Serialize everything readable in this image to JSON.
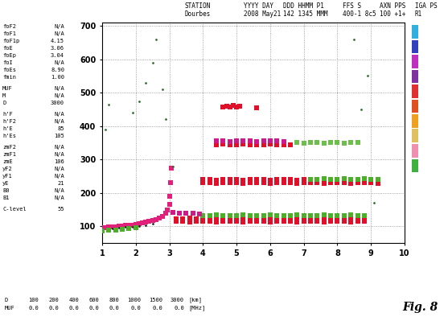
{
  "header": {
    "columns": [
      {
        "label": "STATION",
        "value": "Dourbes"
      },
      {
        "label": "YYYY DAY",
        "value": "2008 May21"
      },
      {
        "label": "DDD HHMM P1",
        "value": "142 1345 MMM"
      },
      {
        "label": "FFS S",
        "value": "400-1 8c5"
      },
      {
        "label": "AXN PPS",
        "value": "100 +1+"
      },
      {
        "label": "IGA PS",
        "value": "R1"
      }
    ]
  },
  "parameters": [
    [
      [
        "foF2",
        "N/A"
      ],
      [
        "foF1",
        "N/A"
      ],
      [
        "foF1p",
        "4.15"
      ],
      [
        "foE",
        "3.06"
      ],
      [
        "foEp",
        "3.04"
      ],
      [
        "foI",
        "N/A"
      ],
      [
        "foEs",
        "8.90"
      ],
      [
        "fmin",
        "1.00"
      ]
    ],
    [
      [
        "MUF",
        "N/A"
      ],
      [
        "M",
        "N/A"
      ],
      [
        "D",
        "3000"
      ]
    ],
    [
      [
        "h'F",
        "N/A"
      ],
      [
        "h'F2",
        "N/A"
      ],
      [
        "h'E",
        "85"
      ],
      [
        "h'Es",
        "105"
      ]
    ],
    [
      [
        "zmF2",
        "N/A"
      ],
      [
        "zmF1",
        "N/A"
      ],
      [
        "zmE",
        "106"
      ],
      [
        "yF2",
        "N/A"
      ],
      [
        "yF1",
        "N/A"
      ],
      [
        "yE",
        "21"
      ],
      [
        "B0",
        "N/A"
      ],
      [
        "B1",
        "N/A"
      ]
    ],
    [
      [
        "C-level",
        "55"
      ]
    ]
  ],
  "chart_data": {
    "type": "scatter",
    "xlim": [
      1,
      10
    ],
    "ylim": [
      50,
      710
    ],
    "xticks": [
      1,
      2,
      3,
      4,
      5,
      6,
      7,
      8,
      9,
      10
    ],
    "yticks": [
      100,
      200,
      300,
      400,
      500,
      600,
      700
    ],
    "grid": true,
    "series": [
      {
        "color": "#e0207a",
        "marker": "square",
        "x": [
          1.0,
          1.1,
          1.2,
          1.3,
          1.4,
          1.5,
          1.6,
          1.7,
          1.8,
          1.9,
          2.0,
          2.1,
          2.2,
          2.3,
          2.4,
          2.5,
          2.6,
          2.7,
          2.8,
          2.9,
          2.95,
          3.0,
          3.02,
          3.04,
          3.06
        ],
        "y": [
          95,
          96,
          97,
          98,
          99,
          100,
          101,
          102,
          103,
          104,
          106,
          108,
          110,
          112,
          114,
          117,
          120,
          124,
          129,
          138,
          148,
          165,
          190,
          230,
          275
        ]
      },
      {
        "color": "#202020",
        "marker": "dot",
        "x": [
          1.3,
          1.5,
          1.7,
          1.9,
          2.1,
          2.3,
          2.5
        ],
        "y": [
          93,
          95,
          97,
          99,
          101,
          104,
          108
        ]
      },
      {
        "color": "#4caf2a",
        "marker": "square",
        "x": [
          1.0,
          1.2,
          1.4,
          1.6,
          1.8,
          2.0
        ],
        "y": [
          86,
          88,
          89,
          91,
          93,
          95
        ]
      },
      {
        "color": "#e0102a",
        "marker": "square",
        "x": [
          3.2,
          3.4,
          3.6,
          3.8,
          4.0,
          4.2,
          4.4,
          4.6,
          4.8,
          5.0,
          5.2,
          5.4,
          5.6,
          5.8,
          6.0,
          6.2,
          6.4,
          6.6,
          6.8,
          7.0,
          7.2,
          7.4,
          7.6,
          7.8,
          8.0,
          8.2,
          8.4,
          8.6,
          8.8
        ],
        "y": [
          114,
          115,
          113,
          114,
          115,
          114,
          113,
          114,
          115,
          114,
          113,
          114,
          115,
          114,
          113,
          114,
          115,
          114,
          113,
          114,
          115,
          114,
          113,
          114,
          115,
          114,
          113,
          114,
          115
        ]
      },
      {
        "color": "#e0102a",
        "marker": "square",
        "x": [
          3.2,
          3.4,
          3.6,
          3.8,
          4.0,
          4.2,
          4.4,
          4.6,
          4.8,
          5.0,
          5.2,
          5.4,
          5.6,
          5.8,
          6.0,
          6.2,
          6.4,
          6.6,
          6.8,
          7.0,
          7.2,
          7.4,
          7.6,
          7.8,
          8.0,
          8.2,
          8.4,
          8.6,
          8.8
        ],
        "y": [
          122,
          123,
          124,
          123,
          122,
          123,
          124,
          123,
          122,
          123,
          124,
          123,
          122,
          123,
          124,
          123,
          122,
          123,
          124,
          123,
          122,
          123,
          124,
          123,
          122,
          123,
          124,
          123,
          122
        ]
      },
      {
        "color": "#4caf2a",
        "marker": "square",
        "x": [
          4.0,
          4.2,
          4.4,
          4.6,
          4.8,
          5.0,
          5.2,
          5.4,
          5.6,
          5.8,
          6.0,
          6.2,
          6.4,
          6.6,
          6.8,
          7.0,
          7.2,
          7.4,
          7.6,
          7.8,
          8.0,
          8.2,
          8.4,
          8.6,
          8.8
        ],
        "y": [
          132,
          133,
          134,
          133,
          132,
          133,
          134,
          133,
          132,
          133,
          134,
          133,
          132,
          133,
          134,
          133,
          132,
          133,
          134,
          133,
          132,
          133,
          134,
          133,
          132
        ]
      },
      {
        "color": "#cc1a8c",
        "marker": "square",
        "x": [
          3.1,
          3.3,
          3.5,
          3.7,
          3.9
        ],
        "y": [
          142,
          140,
          138,
          139,
          137
        ]
      },
      {
        "color": "#e0102a",
        "marker": "square",
        "x": [
          4.0,
          4.2,
          4.4,
          4.6,
          4.8,
          5.0,
          5.2,
          5.4,
          5.6,
          5.8,
          6.0,
          6.2,
          6.4,
          6.6,
          6.8,
          7.0,
          7.2,
          7.4,
          7.6,
          7.8,
          8.0,
          8.2,
          8.4,
          8.6,
          8.8,
          9.0,
          9.2
        ],
        "y": [
          230,
          231,
          229,
          230,
          231,
          230,
          229,
          230,
          231,
          230,
          229,
          230,
          231,
          230,
          229,
          230,
          231,
          230,
          229,
          230,
          231,
          230,
          229,
          230,
          231,
          230,
          229
        ]
      },
      {
        "color": "#e0102a",
        "marker": "square",
        "x": [
          4.0,
          4.2,
          4.4,
          4.6,
          4.8,
          5.0,
          5.2,
          5.4,
          5.6,
          5.8,
          6.0,
          6.2,
          6.4,
          6.6,
          6.8,
          7.0
        ],
        "y": [
          240,
          241,
          239,
          240,
          241,
          240,
          239,
          240,
          241,
          240,
          239,
          240,
          241,
          240,
          239,
          240
        ]
      },
      {
        "color": "#4caf2a",
        "marker": "square",
        "x": [
          7.2,
          7.4,
          7.6,
          7.8,
          8.0,
          8.2,
          8.4,
          8.6,
          8.8,
          9.0,
          9.2
        ],
        "y": [
          241,
          240,
          242,
          241,
          240,
          242,
          241,
          240,
          242,
          241,
          240
        ]
      },
      {
        "color": "#e0102a",
        "marker": "square",
        "x": [
          4.4,
          4.6,
          4.8,
          5.0,
          5.2,
          5.4,
          5.6,
          5.8,
          6.0,
          6.2,
          6.4,
          6.6
        ],
        "y": [
          345,
          346,
          344,
          345,
          346,
          345,
          344,
          345,
          346,
          345,
          344,
          345
        ]
      },
      {
        "color": "#cc1a8c",
        "marker": "square",
        "x": [
          4.4,
          4.6,
          4.8,
          5.0,
          5.2,
          5.4,
          5.6,
          5.8,
          6.0,
          6.2,
          6.4
        ],
        "y": [
          355,
          356,
          354,
          355,
          356,
          355,
          354,
          355,
          356,
          355,
          354
        ]
      },
      {
        "color": "#6cbf4a",
        "marker": "square",
        "x": [
          6.8,
          7.0,
          7.2,
          7.4,
          7.6,
          7.8,
          8.0,
          8.2,
          8.4,
          8.6
        ],
        "y": [
          350,
          348,
          352,
          350,
          348,
          352,
          350,
          348,
          352,
          350
        ]
      },
      {
        "color": "#e0102a",
        "marker": "square",
        "x": [
          4.6,
          4.7,
          4.8,
          4.9,
          5.0,
          5.1,
          5.6
        ],
        "y": [
          458,
          460,
          456,
          462,
          458,
          460,
          455
        ]
      },
      {
        "color": "#2f6f2f",
        "marker": "dot",
        "x": [
          1.1,
          1.2,
          1.9,
          2.1,
          2.3,
          2.5,
          2.6,
          2.8,
          2.9,
          3.1,
          8.5,
          8.9,
          8.7,
          9.1
        ],
        "y": [
          390,
          465,
          440,
          475,
          530,
          590,
          660,
          510,
          420,
          280,
          660,
          550,
          450,
          170
        ]
      }
    ]
  },
  "bottom_table": [
    {
      "label": "D",
      "values": [
        100,
        200,
        400,
        600,
        800,
        1000,
        1500,
        3000
      ],
      "unit": "[km]"
    },
    {
      "label": "MUF",
      "values": [
        0.0,
        0.0,
        0.0,
        0.0,
        0.0,
        0.0,
        0.0,
        0.0
      ],
      "unit": "[MHz]"
    }
  ],
  "caption": "Fig. 8"
}
